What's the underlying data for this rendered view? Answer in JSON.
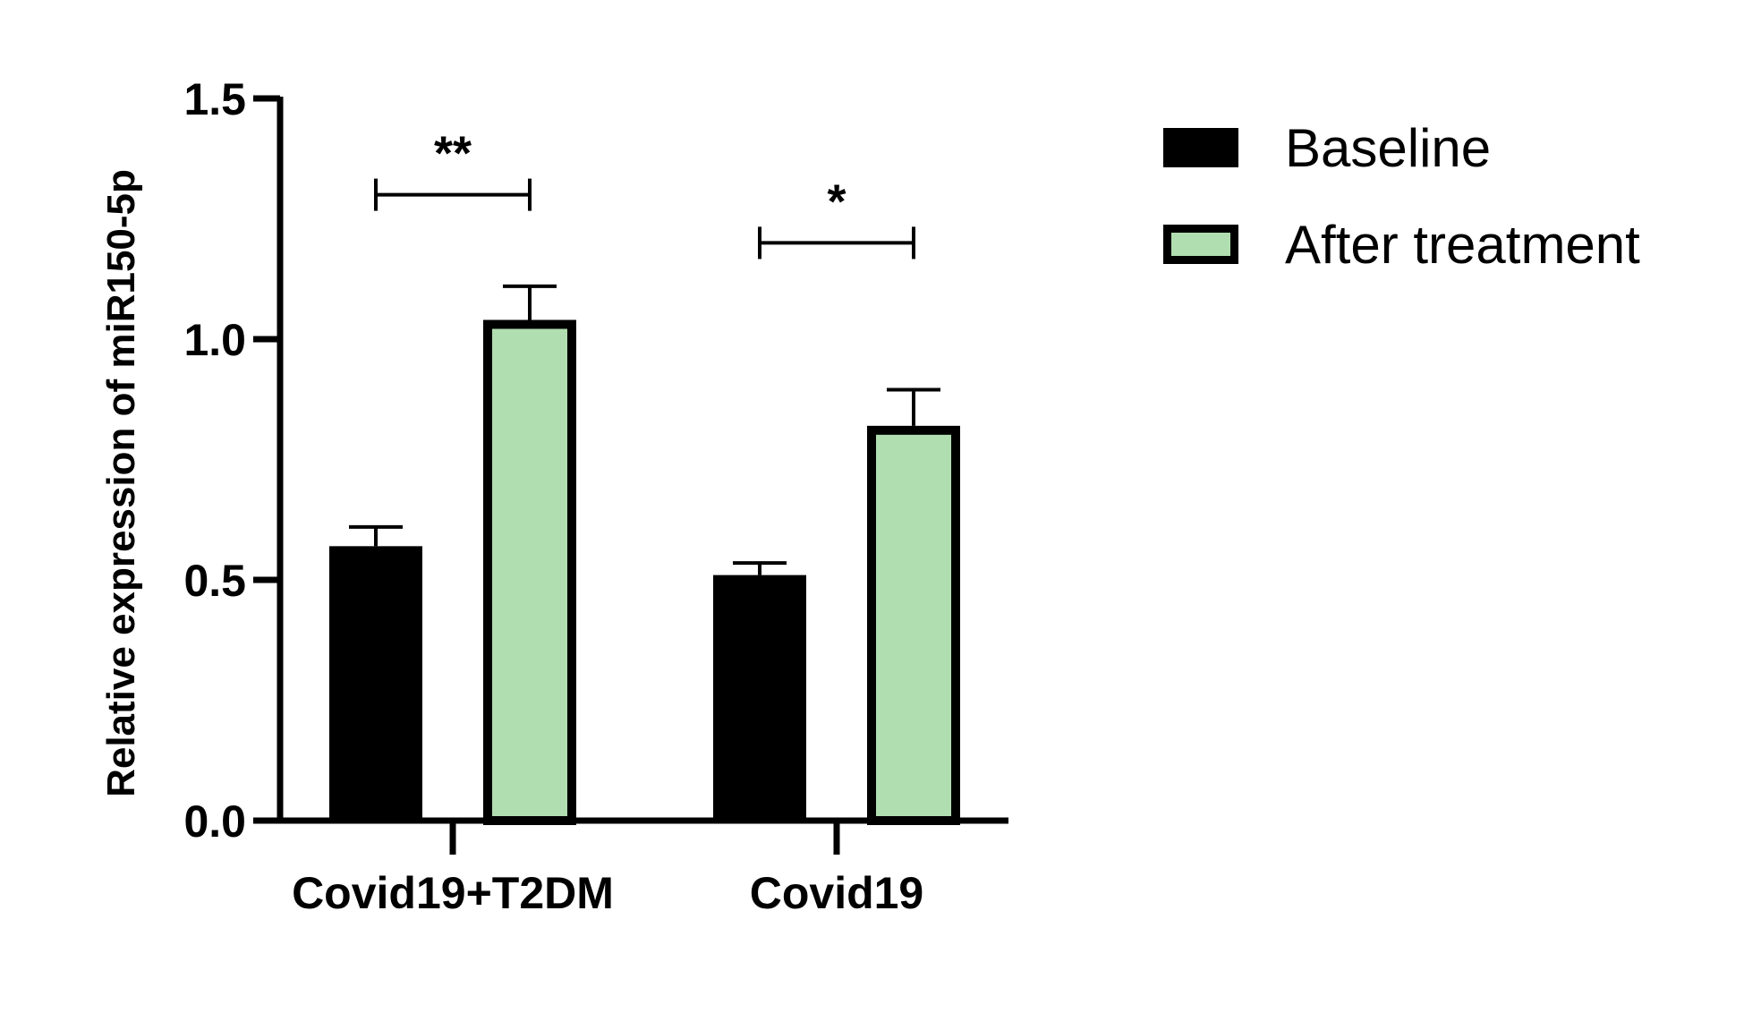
{
  "chart_data": {
    "type": "bar",
    "title": "",
    "xlabel": "",
    "ylabel": "Relative expression of miR150-5p",
    "ylim": [
      0,
      1.5
    ],
    "yticks": [
      "0.0",
      "0.5",
      "1.0",
      "1.5"
    ],
    "categories": [
      "Covid19+T2DM",
      "Covid19"
    ],
    "series": [
      {
        "name": "Baseline",
        "color": "#000000",
        "values": [
          0.57,
          0.51
        ],
        "errors": [
          0.04,
          0.025
        ]
      },
      {
        "name": "After treatment",
        "color": "#b0deb0",
        "values": [
          1.04,
          0.82
        ],
        "errors": [
          0.07,
          0.075
        ]
      }
    ],
    "significance": [
      {
        "category": "Covid19+T2DM",
        "label": "**",
        "y": 1.3
      },
      {
        "category": "Covid19",
        "label": "*",
        "y": 1.2
      }
    ],
    "legend_position": "top-right",
    "grid": false
  }
}
